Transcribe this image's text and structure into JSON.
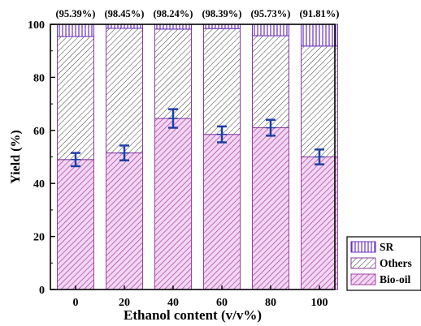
{
  "chart_data": {
    "type": "bar",
    "stacked": true,
    "categories": [
      "0",
      "20",
      "40",
      "60",
      "80",
      "100"
    ],
    "top_labels": [
      "(95.39%)",
      "(98.45%)",
      "(98.24%)",
      "(98.39%)",
      "(95.73%)",
      "(91.81%)"
    ],
    "series": [
      {
        "name": "Bio-oil",
        "values": [
          49.0,
          51.5,
          64.5,
          58.5,
          61.0,
          50.0
        ],
        "errors": [
          2.5,
          2.8,
          3.5,
          3.0,
          3.0,
          2.8
        ],
        "color": "#a040a0"
      },
      {
        "name": "Others",
        "values": [
          46.4,
          47.0,
          33.7,
          39.9,
          34.7,
          41.8
        ],
        "color": "#000000"
      },
      {
        "name": "SR",
        "values": [
          4.6,
          1.5,
          1.8,
          1.6,
          4.3,
          8.2
        ],
        "color": "#6a2fbf"
      }
    ],
    "error_color": "#1f3fa6",
    "xlabel": "Ethanol content (v/v%)",
    "ylabel": "Yield (%)",
    "ylim": [
      0,
      100
    ],
    "yticks": [
      "0",
      "20",
      "40",
      "60",
      "80",
      "100"
    ],
    "legend": {
      "position": "bottom-right",
      "order": [
        "SR",
        "Others",
        "Bio-oil"
      ]
    }
  }
}
